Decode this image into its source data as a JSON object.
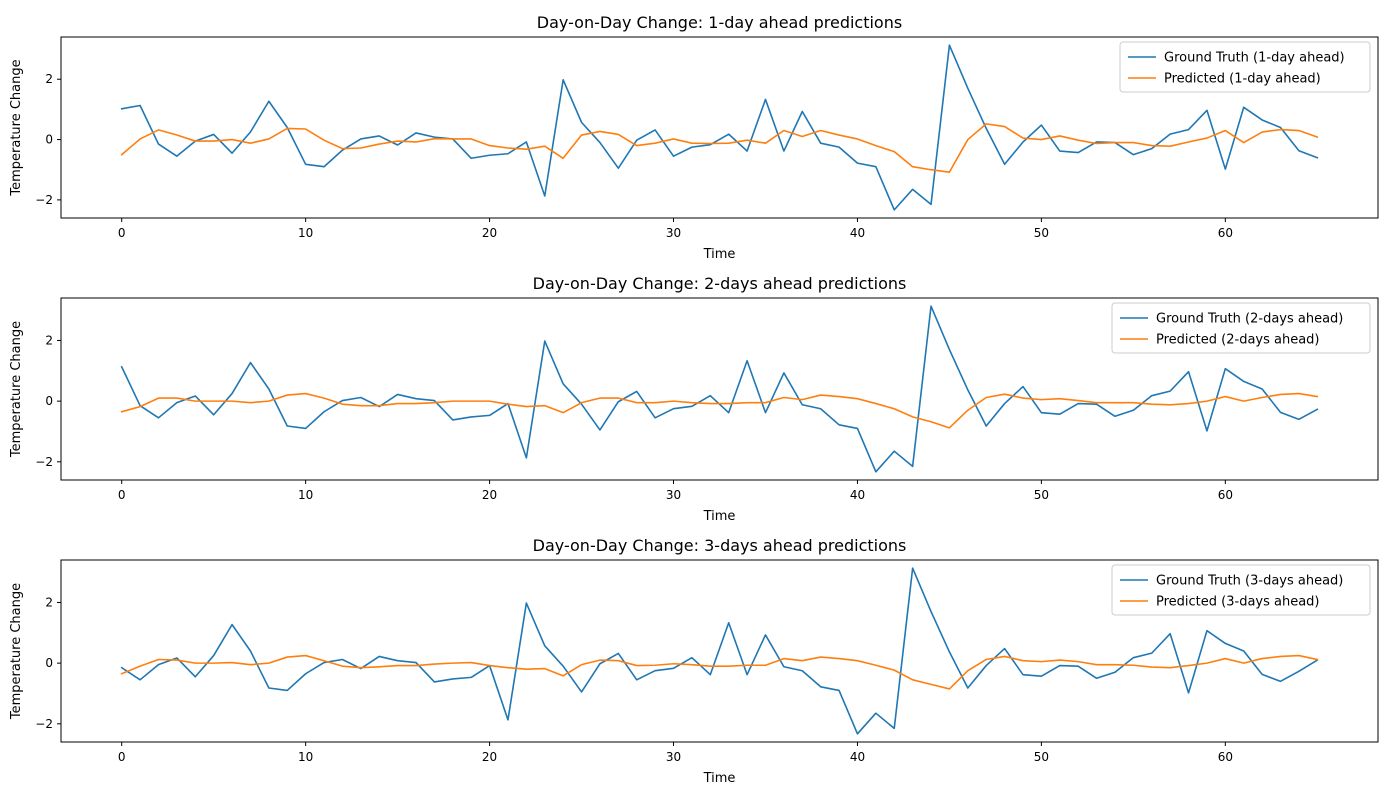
{
  "chart_data": [
    {
      "type": "line",
      "title": "Day-on-Day Change: 1-day ahead predictions",
      "xlabel": "Time",
      "ylabel": "Temperature Change",
      "xlim": [
        -3.3,
        68.3
      ],
      "ylim": [
        -2.6,
        3.4
      ],
      "xticks": [
        0,
        10,
        20,
        30,
        40,
        50,
        60
      ],
      "yticks": [
        -2,
        0,
        2
      ],
      "grid": false,
      "legend": "upper right",
      "series": [
        {
          "name": "Ground Truth (1-day ahead)",
          "color": "#1f77b4",
          "values": [
            1.02,
            1.13,
            -0.15,
            -0.55,
            -0.05,
            0.17,
            -0.45,
            0.25,
            1.27,
            0.4,
            -0.82,
            -0.9,
            -0.35,
            0.02,
            0.12,
            -0.18,
            0.22,
            0.08,
            0.02,
            -0.62,
            -0.52,
            -0.47,
            -0.08,
            -1.87,
            1.98,
            0.57,
            -0.1,
            -0.95,
            -0.02,
            0.32,
            -0.55,
            -0.25,
            -0.17,
            0.18,
            -0.38,
            1.33,
            -0.38,
            0.93,
            -0.12,
            -0.25,
            -0.78,
            -0.9,
            -2.33,
            -1.65,
            -2.15,
            3.13,
            1.7,
            0.37,
            -0.82,
            -0.08,
            0.48,
            -0.38,
            -0.43,
            -0.08,
            -0.1,
            -0.5,
            -0.3,
            0.18,
            0.33,
            0.97,
            -0.98,
            1.07,
            0.65,
            0.4,
            -0.37,
            -0.6
          ]
        },
        {
          "name": "Predicted (1-day ahead)",
          "color": "#ff7f0e",
          "values": [
            -0.5,
            0.02,
            0.32,
            0.15,
            -0.05,
            -0.05,
            0.0,
            -0.12,
            0.02,
            0.37,
            0.35,
            -0.02,
            -0.3,
            -0.28,
            -0.15,
            -0.05,
            -0.08,
            0.03,
            0.02,
            0.02,
            -0.2,
            -0.28,
            -0.32,
            -0.22,
            -0.62,
            0.15,
            0.27,
            0.17,
            -0.2,
            -0.12,
            0.02,
            -0.12,
            -0.13,
            -0.12,
            -0.02,
            -0.12,
            0.3,
            0.1,
            0.3,
            0.15,
            0.02,
            -0.2,
            -0.4,
            -0.9,
            -1.0,
            -1.08,
            0.0,
            0.52,
            0.43,
            0.05,
            0.0,
            0.12,
            -0.02,
            -0.13,
            -0.1,
            -0.1,
            -0.2,
            -0.22,
            -0.08,
            0.05,
            0.3,
            -0.1,
            0.25,
            0.33,
            0.3,
            0.08
          ]
        }
      ]
    },
    {
      "type": "line",
      "title": "Day-on-Day Change: 2-days ahead predictions",
      "xlabel": "Time",
      "ylabel": "Temperature Change",
      "xlim": [
        -3.3,
        68.3
      ],
      "ylim": [
        -2.6,
        3.4
      ],
      "xticks": [
        0,
        10,
        20,
        30,
        40,
        50,
        60
      ],
      "yticks": [
        -2,
        0,
        2
      ],
      "grid": false,
      "legend": "upper right",
      "series": [
        {
          "name": "Ground Truth (2-days ahead)",
          "color": "#1f77b4",
          "values": [
            1.13,
            -0.15,
            -0.55,
            -0.05,
            0.17,
            -0.45,
            0.25,
            1.27,
            0.4,
            -0.82,
            -0.9,
            -0.35,
            0.02,
            0.12,
            -0.18,
            0.22,
            0.08,
            0.02,
            -0.62,
            -0.52,
            -0.47,
            -0.08,
            -1.87,
            1.98,
            0.57,
            -0.1,
            -0.95,
            -0.02,
            0.32,
            -0.55,
            -0.25,
            -0.17,
            0.18,
            -0.38,
            1.33,
            -0.38,
            0.93,
            -0.12,
            -0.25,
            -0.78,
            -0.9,
            -2.33,
            -1.65,
            -2.15,
            3.13,
            1.7,
            0.37,
            -0.82,
            -0.08,
            0.48,
            -0.38,
            -0.43,
            -0.08,
            -0.1,
            -0.5,
            -0.3,
            0.18,
            0.33,
            0.97,
            -0.98,
            1.07,
            0.65,
            0.4,
            -0.37,
            -0.6,
            -0.27
          ]
        },
        {
          "name": "Predicted (2-days ahead)",
          "color": "#ff7f0e",
          "values": [
            -0.35,
            -0.18,
            0.1,
            0.1,
            0.0,
            0.0,
            0.0,
            -0.05,
            0.0,
            0.2,
            0.25,
            0.1,
            -0.1,
            -0.15,
            -0.15,
            -0.08,
            -0.08,
            -0.05,
            0.0,
            0.0,
            0.0,
            -0.1,
            -0.18,
            -0.15,
            -0.38,
            -0.05,
            0.1,
            0.1,
            -0.05,
            -0.05,
            0.0,
            -0.05,
            -0.08,
            -0.08,
            -0.05,
            -0.05,
            0.12,
            0.05,
            0.2,
            0.15,
            0.08,
            -0.08,
            -0.25,
            -0.52,
            -0.68,
            -0.88,
            -0.3,
            0.12,
            0.23,
            0.1,
            0.05,
            0.08,
            0.02,
            -0.05,
            -0.05,
            -0.05,
            -0.1,
            -0.12,
            -0.08,
            0.0,
            0.15,
            0.0,
            0.12,
            0.22,
            0.25,
            0.15
          ]
        }
      ]
    },
    {
      "type": "line",
      "title": "Day-on-Day Change: 3-days ahead predictions",
      "xlabel": "Time",
      "ylabel": "Temperature Change",
      "xlim": [
        -3.3,
        68.3
      ],
      "ylim": [
        -2.6,
        3.4
      ],
      "xticks": [
        0,
        10,
        20,
        30,
        40,
        50,
        60
      ],
      "yticks": [
        -2,
        0,
        2
      ],
      "grid": false,
      "legend": "upper right",
      "series": [
        {
          "name": "Ground Truth (3-days ahead)",
          "color": "#1f77b4",
          "values": [
            -0.15,
            -0.55,
            -0.05,
            0.17,
            -0.45,
            0.25,
            1.27,
            0.4,
            -0.82,
            -0.9,
            -0.35,
            0.02,
            0.12,
            -0.18,
            0.22,
            0.08,
            0.02,
            -0.62,
            -0.52,
            -0.47,
            -0.08,
            -1.87,
            1.98,
            0.57,
            -0.1,
            -0.95,
            -0.02,
            0.32,
            -0.55,
            -0.25,
            -0.17,
            0.18,
            -0.38,
            1.33,
            -0.38,
            0.93,
            -0.12,
            -0.25,
            -0.78,
            -0.9,
            -2.33,
            -1.65,
            -2.15,
            3.13,
            1.7,
            0.37,
            -0.82,
            -0.08,
            0.48,
            -0.38,
            -0.43,
            -0.08,
            -0.1,
            -0.5,
            -0.3,
            0.18,
            0.33,
            0.97,
            -0.98,
            1.07,
            0.65,
            0.4,
            -0.37,
            -0.6,
            -0.27,
            0.1
          ]
        },
        {
          "name": "Predicted (3-days ahead)",
          "color": "#ff7f0e",
          "values": [
            -0.35,
            -0.1,
            0.12,
            0.1,
            0.0,
            0.0,
            0.02,
            -0.05,
            0.0,
            0.2,
            0.25,
            0.08,
            -0.1,
            -0.15,
            -0.12,
            -0.08,
            -0.08,
            -0.03,
            0.0,
            0.02,
            -0.08,
            -0.15,
            -0.2,
            -0.18,
            -0.42,
            -0.05,
            0.1,
            0.08,
            -0.08,
            -0.07,
            -0.02,
            -0.05,
            -0.1,
            -0.1,
            -0.07,
            -0.07,
            0.15,
            0.08,
            0.2,
            0.15,
            0.08,
            -0.07,
            -0.23,
            -0.55,
            -0.7,
            -0.85,
            -0.25,
            0.12,
            0.22,
            0.08,
            0.05,
            0.1,
            0.05,
            -0.05,
            -0.05,
            -0.07,
            -0.13,
            -0.15,
            -0.08,
            0.0,
            0.15,
            0.0,
            0.15,
            0.22,
            0.25,
            0.12
          ]
        }
      ]
    }
  ]
}
